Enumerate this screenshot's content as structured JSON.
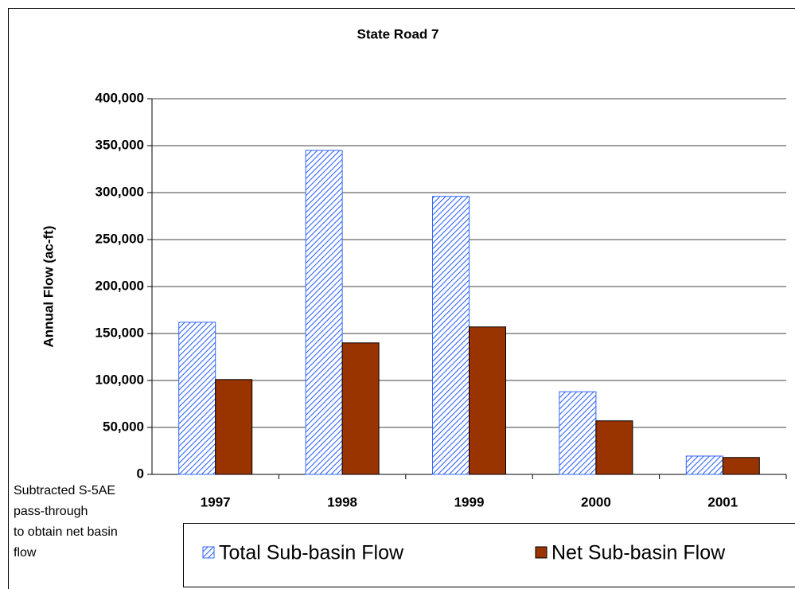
{
  "chart_data": {
    "type": "bar",
    "title": "State Road 7",
    "y_label": "Annual Flow (ac-ft)",
    "categories": [
      "1997",
      "1998",
      "1999",
      "2000",
      "2001"
    ],
    "series": [
      {
        "name": "Total Sub-basin Flow",
        "color": "#3366ff",
        "fill_style": "hatch",
        "values": [
          162000,
          345000,
          296000,
          88000,
          19500
        ]
      },
      {
        "name": "Net Sub-basin Flow",
        "color": "#993300",
        "fill_style": "solid",
        "values": [
          101000,
          140000,
          157000,
          57000,
          18000
        ]
      }
    ],
    "ylim": [
      0,
      400000
    ],
    "yticks": [
      0,
      {
        "value": 50000,
        "label": "50,000"
      },
      {
        "value": 100000,
        "label": "100,000"
      },
      {
        "value": 150000,
        "label": "150,000"
      },
      {
        "value": 200000,
        "label": "200,000"
      },
      {
        "value": 250000,
        "label": "250,000"
      },
      {
        "value": 300000,
        "label": "300,000"
      },
      {
        "value": 350000,
        "label": "350,000"
      },
      {
        "value": 400000,
        "label": "400,000"
      }
    ],
    "grid": true,
    "legend": "bottom",
    "annotation": [
      "Subtracted S-5AE",
      "pass-through",
      "to obtain net basin",
      "flow"
    ]
  }
}
